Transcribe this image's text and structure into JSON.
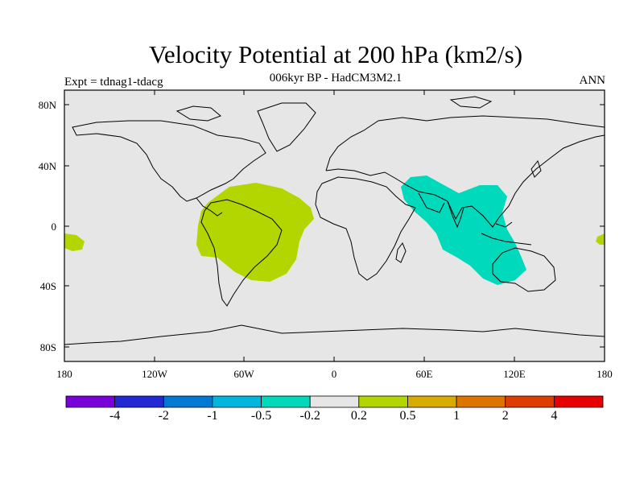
{
  "title": "Velocity Potential at 200 hPa (km2/s)",
  "subtitle": "006kyr BP - HadCM3M2.1",
  "left_label": "Expt = tdnag1-tdacg",
  "right_label": "ANN",
  "map": {
    "background_color": "#e6e6e6",
    "lat_labels": [
      "80N",
      "40N",
      "0",
      "40S",
      "80S"
    ],
    "lon_labels": [
      "180",
      "120W",
      "60W",
      "0",
      "60E",
      "120E",
      "180"
    ],
    "positive_color": "#b4d600",
    "negative_color": "#00d9bc"
  },
  "colorbar": {
    "colors": [
      "#7a00d9",
      "#2229d2",
      "#0079d5",
      "#00b5de",
      "#00d9bc",
      "#e6e6e6",
      "#b4d600",
      "#d9aa00",
      "#de7400",
      "#dd3d00",
      "#e60000"
    ],
    "labels": [
      "-4",
      "-2",
      "-1",
      "-0.5",
      "-0.2",
      "0.2",
      "0.5",
      "1",
      "2",
      "4"
    ]
  }
}
